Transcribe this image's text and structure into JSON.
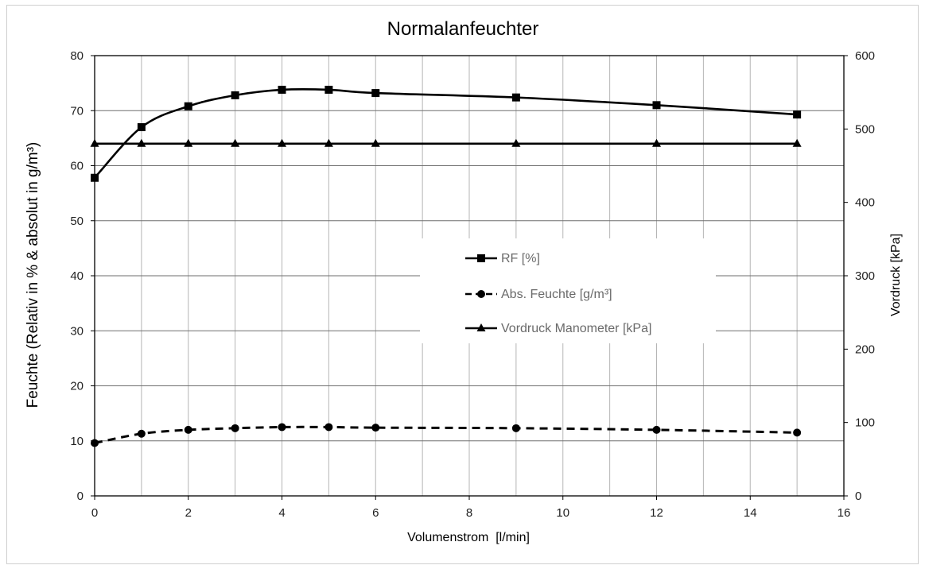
{
  "chart_data": {
    "type": "line",
    "title": "Normalanfeuchter",
    "xlabel": "Volumenstrom  [l/min]",
    "ylabel": "Feuchte (Relativ in % & absolut in g/m³)",
    "y2label": "Vordruck [kPa]",
    "xlim": [
      0,
      16
    ],
    "ylim": [
      0,
      80
    ],
    "y2lim": [
      0,
      600
    ],
    "x_ticks": [
      "0",
      "2",
      "4",
      "6",
      "8",
      "10",
      "12",
      "14",
      "16"
    ],
    "y_ticks": [
      "0",
      "10",
      "20",
      "30",
      "40",
      "50",
      "60",
      "70",
      "80"
    ],
    "y2_ticks": [
      "0",
      "100",
      "200",
      "300",
      "400",
      "500",
      "600"
    ],
    "grid": true,
    "legend_position": "center",
    "series": [
      {
        "name": "RF [%]",
        "axis": "left",
        "line_style": "solid",
        "marker": "square",
        "color": "#000000",
        "x": [
          0,
          1,
          2,
          3,
          4,
          5,
          6,
          9,
          12,
          15
        ],
        "y": [
          57.8,
          67.0,
          70.8,
          72.8,
          73.8,
          73.8,
          73.2,
          72.4,
          71.0,
          69.3
        ]
      },
      {
        "name": "Abs. Feuchte [g/m³]",
        "axis": "left",
        "line_style": "dashed",
        "marker": "circle",
        "color": "#000000",
        "x": [
          0,
          1,
          2,
          3,
          4,
          5,
          6,
          9,
          12,
          15
        ],
        "y": [
          9.6,
          11.3,
          12.0,
          12.3,
          12.5,
          12.5,
          12.4,
          12.3,
          12.0,
          11.5
        ]
      },
      {
        "name": "Vordruck Manometer [kPa]",
        "axis": "right",
        "line_style": "solid",
        "marker": "triangle",
        "color": "#000000",
        "x": [
          0,
          1,
          2,
          3,
          4,
          5,
          6,
          9,
          12,
          15
        ],
        "y": [
          480,
          480,
          480,
          480,
          480,
          480,
          480,
          480,
          480,
          480
        ]
      }
    ]
  }
}
